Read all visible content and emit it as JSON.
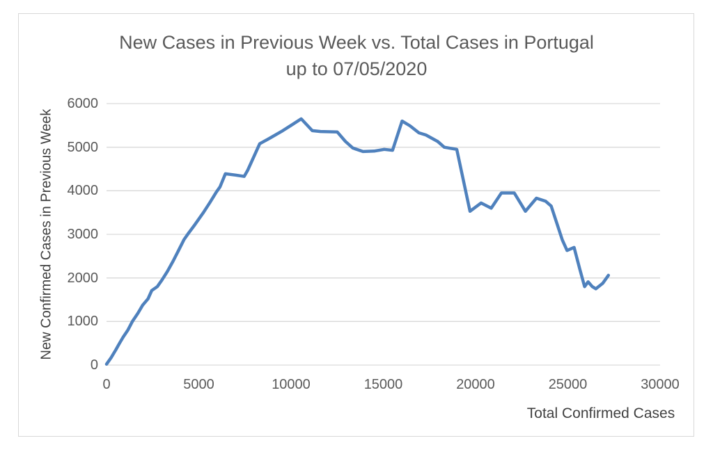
{
  "chart_data": {
    "type": "line",
    "title_line1": "New Cases in Previous Week vs. Total Cases in Portugal",
    "title_line2": "up to 07/05/2020",
    "xlabel": "Total Confirmed Cases",
    "ylabel": "New Confirmed Cases in Previous Week",
    "xlim": [
      0,
      30000
    ],
    "ylim": [
      0,
      6000
    ],
    "x_ticks": [
      0,
      5000,
      10000,
      15000,
      20000,
      25000,
      30000
    ],
    "y_ticks": [
      0,
      1000,
      2000,
      3000,
      4000,
      5000,
      6000
    ],
    "grid": "horizontal-only",
    "legend": "none",
    "line_color": "#4F81BD",
    "text_color": "#595959",
    "gridline_color": "#d9d9d9",
    "series": [
      {
        "name": "New confirmed cases in previous week vs total confirmed cases",
        "points": [
          [
            0,
            20
          ],
          [
            250,
            170
          ],
          [
            500,
            350
          ],
          [
            700,
            500
          ],
          [
            900,
            640
          ],
          [
            1150,
            800
          ],
          [
            1400,
            1000
          ],
          [
            1700,
            1190
          ],
          [
            1950,
            1370
          ],
          [
            2250,
            1520
          ],
          [
            2450,
            1710
          ],
          [
            2750,
            1800
          ],
          [
            3000,
            1950
          ],
          [
            3300,
            2150
          ],
          [
            3600,
            2380
          ],
          [
            3900,
            2630
          ],
          [
            4200,
            2880
          ],
          [
            4450,
            3030
          ],
          [
            4800,
            3230
          ],
          [
            5250,
            3500
          ],
          [
            5600,
            3730
          ],
          [
            5950,
            3970
          ],
          [
            6150,
            4090
          ],
          [
            6440,
            4390
          ],
          [
            7000,
            4360
          ],
          [
            7460,
            4330
          ],
          [
            7650,
            4470
          ],
          [
            8300,
            5080
          ],
          [
            8900,
            5220
          ],
          [
            9550,
            5380
          ],
          [
            10000,
            5500
          ],
          [
            10550,
            5650
          ],
          [
            11150,
            5380
          ],
          [
            11600,
            5360
          ],
          [
            12500,
            5350
          ],
          [
            12950,
            5130
          ],
          [
            13350,
            4980
          ],
          [
            13900,
            4900
          ],
          [
            14500,
            4910
          ],
          [
            15050,
            4950
          ],
          [
            15500,
            4930
          ],
          [
            16020,
            5600
          ],
          [
            16450,
            5490
          ],
          [
            16930,
            5330
          ],
          [
            17310,
            5280
          ],
          [
            17950,
            5130
          ],
          [
            18300,
            5000
          ],
          [
            18980,
            4950
          ],
          [
            19700,
            3530
          ],
          [
            20300,
            3720
          ],
          [
            20850,
            3600
          ],
          [
            21400,
            3950
          ],
          [
            22100,
            3950
          ],
          [
            22700,
            3530
          ],
          [
            23300,
            3830
          ],
          [
            23800,
            3760
          ],
          [
            24100,
            3650
          ],
          [
            24700,
            2870
          ],
          [
            24960,
            2630
          ],
          [
            25340,
            2700
          ],
          [
            25650,
            2200
          ],
          [
            25910,
            1800
          ],
          [
            26100,
            1910
          ],
          [
            26330,
            1800
          ],
          [
            26520,
            1750
          ],
          [
            26900,
            1880
          ],
          [
            27200,
            2060
          ]
        ]
      }
    ]
  }
}
